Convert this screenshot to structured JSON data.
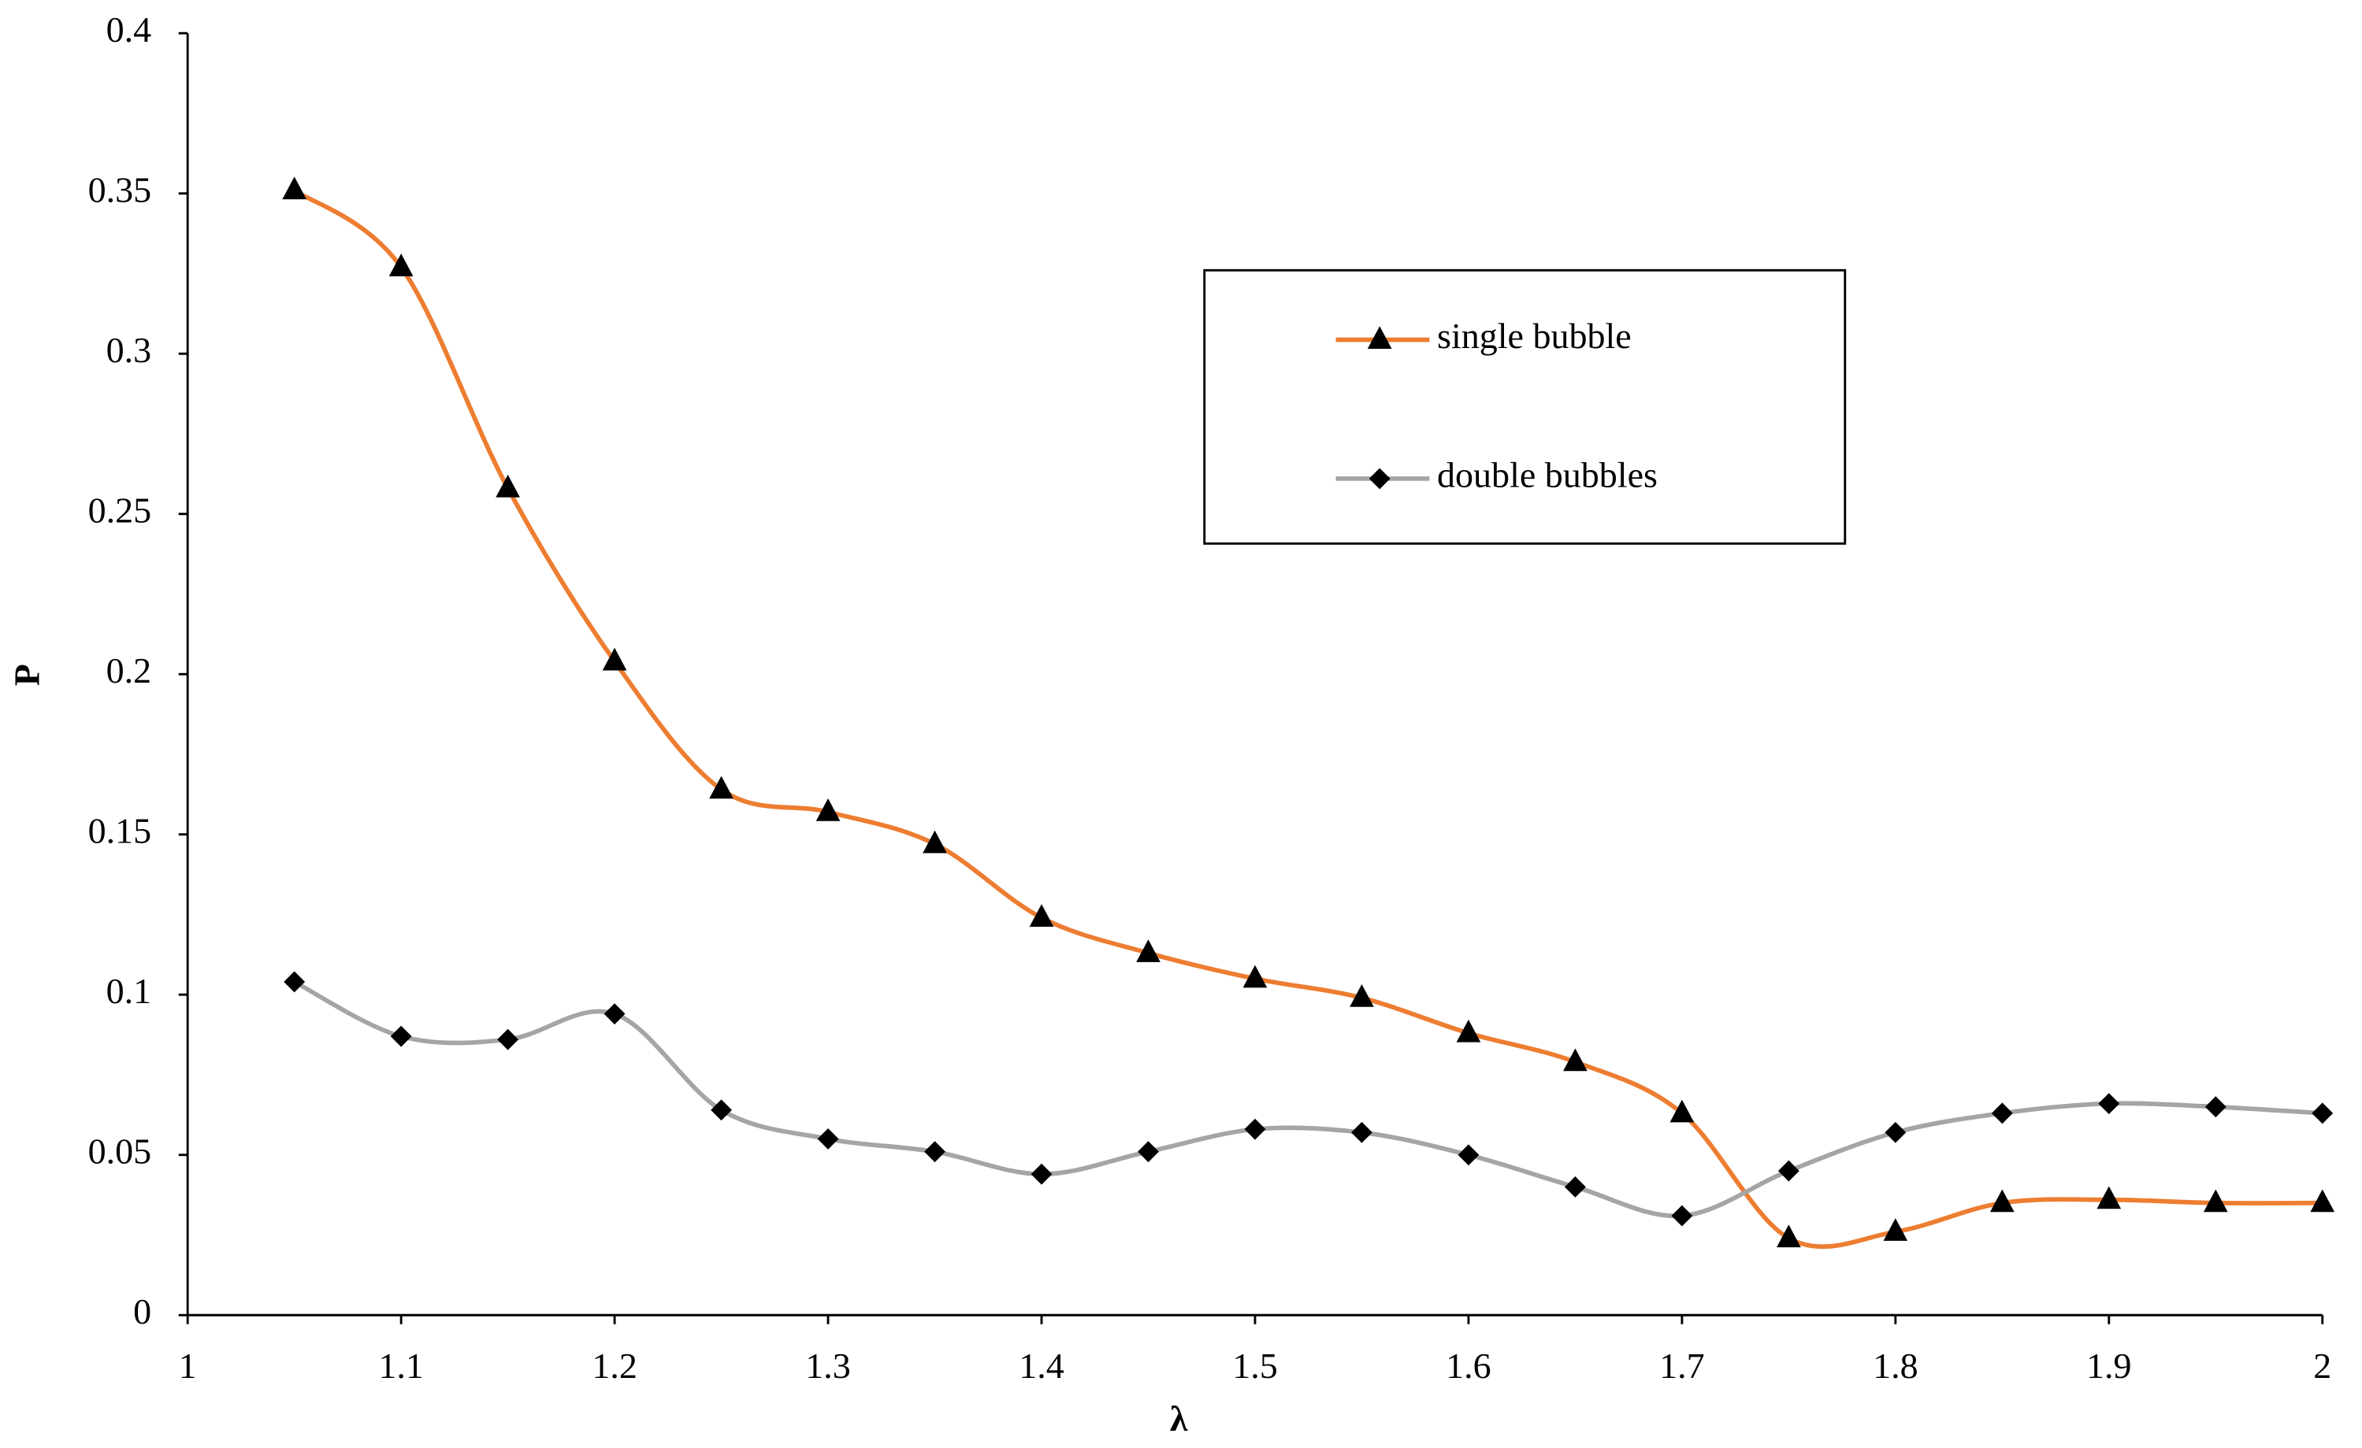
{
  "chart_data": {
    "type": "line",
    "x_label": "λ",
    "y_label": "P",
    "x": [
      1.05,
      1.1,
      1.15,
      1.2,
      1.25,
      1.3,
      1.35,
      1.4,
      1.45,
      1.5,
      1.55,
      1.6,
      1.65,
      1.7,
      1.75,
      1.8,
      1.85,
      1.9,
      1.95,
      2.0
    ],
    "series": [
      {
        "name": "single bubble",
        "color": "#ed7d31",
        "marker": "triangle",
        "values": [
          0.351,
          0.327,
          0.258,
          0.204,
          0.164,
          0.157,
          0.147,
          0.124,
          0.113,
          0.105,
          0.099,
          0.088,
          0.079,
          0.063,
          0.024,
          0.026,
          0.035,
          0.036,
          0.035,
          0.035
        ]
      },
      {
        "name": "double bubbles",
        "color": "#a5a5a5",
        "marker": "diamond",
        "values": [
          0.104,
          0.087,
          0.086,
          0.094,
          0.064,
          0.055,
          0.051,
          0.044,
          0.051,
          0.058,
          0.057,
          0.05,
          0.04,
          0.031,
          0.045,
          0.057,
          0.063,
          0.066,
          0.065,
          0.063
        ]
      }
    ],
    "xlim": [
      1,
      2
    ],
    "xticks": [
      1,
      1.1,
      1.2,
      1.3,
      1.4,
      1.5,
      1.6,
      1.7,
      1.8,
      1.9,
      2
    ],
    "ylim": [
      0,
      0.4
    ],
    "yticks": [
      0,
      0.05,
      0.1,
      0.15,
      0.2,
      0.25,
      0.3,
      0.35,
      0.4
    ],
    "smooth": true
  }
}
